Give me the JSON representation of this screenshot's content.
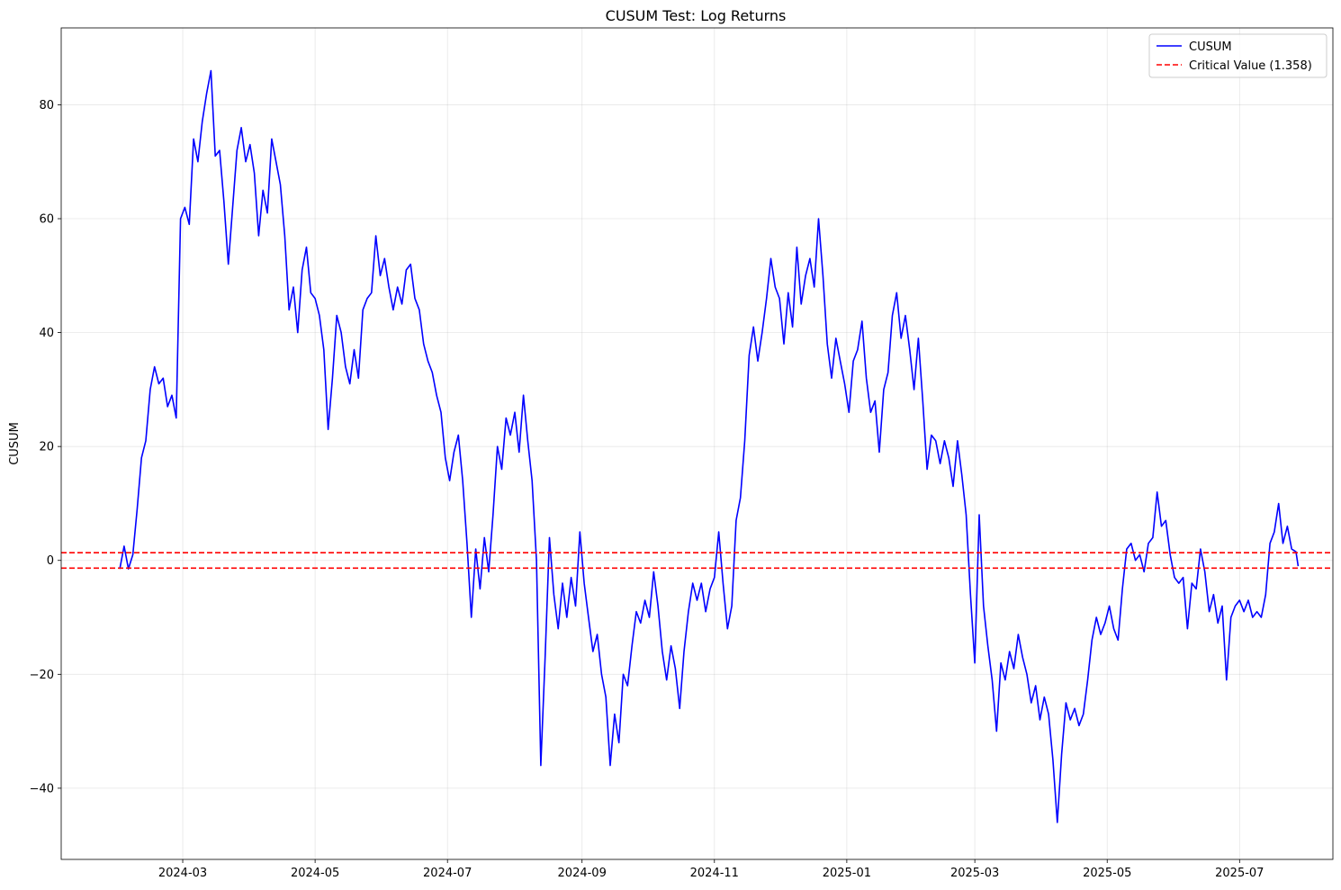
{
  "chart_data": {
    "type": "line",
    "title": "CUSUM Test: Log Returns",
    "xlabel": "",
    "ylabel": "CUSUM",
    "xlim": [
      "2024-01-05",
      "2025-08-13"
    ],
    "ylim": [
      -52.5,
      93.5
    ],
    "x_ticks": [
      "2024-03",
      "2024-05",
      "2024-07",
      "2024-09",
      "2024-11",
      "2025-01",
      "2025-03",
      "2025-05",
      "2025-07"
    ],
    "y_ticks": [
      -40,
      -20,
      0,
      20,
      40,
      60,
      80
    ],
    "grid": true,
    "legend_position": "top-right",
    "series": [
      {
        "name": "CUSUM",
        "color": "#0000ff",
        "style": "solid",
        "points": [
          [
            "2024-02-01",
            -1.5
          ],
          [
            "2024-02-03",
            2.5
          ],
          [
            "2024-02-05",
            -1.5
          ],
          [
            "2024-02-07",
            1.0
          ],
          [
            "2024-02-09",
            9.0
          ],
          [
            "2024-02-11",
            18.0
          ],
          [
            "2024-02-13",
            21.0
          ],
          [
            "2024-02-15",
            30.0
          ],
          [
            "2024-02-17",
            34.0
          ],
          [
            "2024-02-19",
            31.0
          ],
          [
            "2024-02-21",
            32.0
          ],
          [
            "2024-02-23",
            27.0
          ],
          [
            "2024-02-25",
            29.0
          ],
          [
            "2024-02-27",
            25.0
          ],
          [
            "2024-02-29",
            60.0
          ],
          [
            "2024-03-02",
            62.0
          ],
          [
            "2024-03-04",
            59.0
          ],
          [
            "2024-03-06",
            74.0
          ],
          [
            "2024-03-08",
            70.0
          ],
          [
            "2024-03-10",
            77.0
          ],
          [
            "2024-03-12",
            82.0
          ],
          [
            "2024-03-14",
            86.0
          ],
          [
            "2024-03-16",
            71.0
          ],
          [
            "2024-03-18",
            72.0
          ],
          [
            "2024-03-20",
            63.0
          ],
          [
            "2024-03-22",
            52.0
          ],
          [
            "2024-03-24",
            62.0
          ],
          [
            "2024-03-26",
            72.0
          ],
          [
            "2024-03-28",
            76.0
          ],
          [
            "2024-03-30",
            70.0
          ],
          [
            "2024-04-01",
            73.0
          ],
          [
            "2024-04-03",
            68.0
          ],
          [
            "2024-04-05",
            57.0
          ],
          [
            "2024-04-07",
            65.0
          ],
          [
            "2024-04-09",
            61.0
          ],
          [
            "2024-04-11",
            74.0
          ],
          [
            "2024-04-13",
            70.0
          ],
          [
            "2024-04-15",
            66.0
          ],
          [
            "2024-04-17",
            57.0
          ],
          [
            "2024-04-19",
            44.0
          ],
          [
            "2024-04-21",
            48.0
          ],
          [
            "2024-04-23",
            40.0
          ],
          [
            "2024-04-25",
            51.0
          ],
          [
            "2024-04-27",
            55.0
          ],
          [
            "2024-04-29",
            47.0
          ],
          [
            "2024-05-01",
            46.0
          ],
          [
            "2024-05-03",
            43.0
          ],
          [
            "2024-05-05",
            37.0
          ],
          [
            "2024-05-07",
            23.0
          ],
          [
            "2024-05-09",
            32.0
          ],
          [
            "2024-05-11",
            43.0
          ],
          [
            "2024-05-13",
            40.0
          ],
          [
            "2024-05-15",
            34.0
          ],
          [
            "2024-05-17",
            31.0
          ],
          [
            "2024-05-19",
            37.0
          ],
          [
            "2024-05-21",
            32.0
          ],
          [
            "2024-05-23",
            44.0
          ],
          [
            "2024-05-25",
            46.0
          ],
          [
            "2024-05-27",
            47.0
          ],
          [
            "2024-05-29",
            57.0
          ],
          [
            "2024-05-31",
            50.0
          ],
          [
            "2024-06-02",
            53.0
          ],
          [
            "2024-06-04",
            48.0
          ],
          [
            "2024-06-06",
            44.0
          ],
          [
            "2024-06-08",
            48.0
          ],
          [
            "2024-06-10",
            45.0
          ],
          [
            "2024-06-12",
            51.0
          ],
          [
            "2024-06-14",
            52.0
          ],
          [
            "2024-06-16",
            46.0
          ],
          [
            "2024-06-18",
            44.0
          ],
          [
            "2024-06-20",
            38.0
          ],
          [
            "2024-06-22",
            35.0
          ],
          [
            "2024-06-24",
            33.0
          ],
          [
            "2024-06-26",
            29.0
          ],
          [
            "2024-06-28",
            26.0
          ],
          [
            "2024-06-30",
            18.0
          ],
          [
            "2024-07-02",
            14.0
          ],
          [
            "2024-07-04",
            19.0
          ],
          [
            "2024-07-06",
            22.0
          ],
          [
            "2024-07-08",
            14.0
          ],
          [
            "2024-07-10",
            3.0
          ],
          [
            "2024-07-12",
            -10.0
          ],
          [
            "2024-07-14",
            2.0
          ],
          [
            "2024-07-16",
            -5.0
          ],
          [
            "2024-07-18",
            4.0
          ],
          [
            "2024-07-20",
            -2.0
          ],
          [
            "2024-07-22",
            8.0
          ],
          [
            "2024-07-24",
            20.0
          ],
          [
            "2024-07-26",
            16.0
          ],
          [
            "2024-07-28",
            25.0
          ],
          [
            "2024-07-30",
            22.0
          ],
          [
            "2024-08-01",
            26.0
          ],
          [
            "2024-08-03",
            19.0
          ],
          [
            "2024-08-05",
            29.0
          ],
          [
            "2024-08-07",
            21.0
          ],
          [
            "2024-08-09",
            14.0
          ],
          [
            "2024-08-11",
            0.0
          ],
          [
            "2024-08-13",
            -36.0
          ],
          [
            "2024-08-15",
            -17.0
          ],
          [
            "2024-08-17",
            4.0
          ],
          [
            "2024-08-19",
            -6.0
          ],
          [
            "2024-08-21",
            -12.0
          ],
          [
            "2024-08-23",
            -4.0
          ],
          [
            "2024-08-25",
            -10.0
          ],
          [
            "2024-08-27",
            -3.0
          ],
          [
            "2024-08-29",
            -8.0
          ],
          [
            "2024-08-31",
            5.0
          ],
          [
            "2024-09-02",
            -4.0
          ],
          [
            "2024-09-04",
            -10.0
          ],
          [
            "2024-09-06",
            -16.0
          ],
          [
            "2024-09-08",
            -13.0
          ],
          [
            "2024-09-10",
            -20.0
          ],
          [
            "2024-09-12",
            -24.0
          ],
          [
            "2024-09-14",
            -36.0
          ],
          [
            "2024-09-16",
            -27.0
          ],
          [
            "2024-09-18",
            -32.0
          ],
          [
            "2024-09-20",
            -20.0
          ],
          [
            "2024-09-22",
            -22.0
          ],
          [
            "2024-09-24",
            -15.0
          ],
          [
            "2024-09-26",
            -9.0
          ],
          [
            "2024-09-28",
            -11.0
          ],
          [
            "2024-09-30",
            -7.0
          ],
          [
            "2024-10-02",
            -10.0
          ],
          [
            "2024-10-04",
            -2.0
          ],
          [
            "2024-10-06",
            -8.0
          ],
          [
            "2024-10-08",
            -16.0
          ],
          [
            "2024-10-10",
            -21.0
          ],
          [
            "2024-10-12",
            -15.0
          ],
          [
            "2024-10-14",
            -19.0
          ],
          [
            "2024-10-16",
            -26.0
          ],
          [
            "2024-10-18",
            -16.0
          ],
          [
            "2024-10-20",
            -9.0
          ],
          [
            "2024-10-22",
            -4.0
          ],
          [
            "2024-10-24",
            -7.0
          ],
          [
            "2024-10-26",
            -4.0
          ],
          [
            "2024-10-28",
            -9.0
          ],
          [
            "2024-10-30",
            -5.0
          ],
          [
            "2024-11-01",
            -3.0
          ],
          [
            "2024-11-03",
            5.0
          ],
          [
            "2024-11-05",
            -4.0
          ],
          [
            "2024-11-07",
            -12.0
          ],
          [
            "2024-11-09",
            -8.0
          ],
          [
            "2024-11-11",
            7.0
          ],
          [
            "2024-11-13",
            11.0
          ],
          [
            "2024-11-15",
            21.0
          ],
          [
            "2024-11-17",
            36.0
          ],
          [
            "2024-11-19",
            41.0
          ],
          [
            "2024-11-21",
            35.0
          ],
          [
            "2024-11-23",
            40.0
          ],
          [
            "2024-11-25",
            46.0
          ],
          [
            "2024-11-27",
            53.0
          ],
          [
            "2024-11-29",
            48.0
          ],
          [
            "2024-12-01",
            46.0
          ],
          [
            "2024-12-03",
            38.0
          ],
          [
            "2024-12-05",
            47.0
          ],
          [
            "2024-12-07",
            41.0
          ],
          [
            "2024-12-09",
            55.0
          ],
          [
            "2024-12-11",
            45.0
          ],
          [
            "2024-12-13",
            50.0
          ],
          [
            "2024-12-15",
            53.0
          ],
          [
            "2024-12-17",
            48.0
          ],
          [
            "2024-12-19",
            60.0
          ],
          [
            "2024-12-21",
            50.0
          ],
          [
            "2024-12-23",
            38.0
          ],
          [
            "2024-12-25",
            32.0
          ],
          [
            "2024-12-27",
            39.0
          ],
          [
            "2024-12-29",
            35.0
          ],
          [
            "2024-12-31",
            31.0
          ],
          [
            "2025-01-02",
            26.0
          ],
          [
            "2025-01-04",
            35.0
          ],
          [
            "2025-01-06",
            37.0
          ],
          [
            "2025-01-08",
            42.0
          ],
          [
            "2025-01-10",
            32.0
          ],
          [
            "2025-01-12",
            26.0
          ],
          [
            "2025-01-14",
            28.0
          ],
          [
            "2025-01-16",
            19.0
          ],
          [
            "2025-01-18",
            30.0
          ],
          [
            "2025-01-20",
            33.0
          ],
          [
            "2025-01-22",
            43.0
          ],
          [
            "2025-01-24",
            47.0
          ],
          [
            "2025-01-26",
            39.0
          ],
          [
            "2025-01-28",
            43.0
          ],
          [
            "2025-01-30",
            37.0
          ],
          [
            "2025-02-01",
            30.0
          ],
          [
            "2025-02-03",
            39.0
          ],
          [
            "2025-02-05",
            28.0
          ],
          [
            "2025-02-07",
            16.0
          ],
          [
            "2025-02-09",
            22.0
          ],
          [
            "2025-02-11",
            21.0
          ],
          [
            "2025-02-13",
            17.0
          ],
          [
            "2025-02-15",
            21.0
          ],
          [
            "2025-02-17",
            18.0
          ],
          [
            "2025-02-19",
            13.0
          ],
          [
            "2025-02-21",
            21.0
          ],
          [
            "2025-02-23",
            15.0
          ],
          [
            "2025-02-25",
            8.0
          ],
          [
            "2025-02-27",
            -6.0
          ],
          [
            "2025-03-01",
            -18.0
          ],
          [
            "2025-03-03",
            8.0
          ],
          [
            "2025-03-05",
            -8.0
          ],
          [
            "2025-03-07",
            -15.0
          ],
          [
            "2025-03-09",
            -21.0
          ],
          [
            "2025-03-11",
            -30.0
          ],
          [
            "2025-03-13",
            -18.0
          ],
          [
            "2025-03-15",
            -21.0
          ],
          [
            "2025-03-17",
            -16.0
          ],
          [
            "2025-03-19",
            -19.0
          ],
          [
            "2025-03-21",
            -13.0
          ],
          [
            "2025-03-23",
            -17.0
          ],
          [
            "2025-03-25",
            -20.0
          ],
          [
            "2025-03-27",
            -25.0
          ],
          [
            "2025-03-29",
            -22.0
          ],
          [
            "2025-03-31",
            -28.0
          ],
          [
            "2025-04-02",
            -24.0
          ],
          [
            "2025-04-04",
            -27.0
          ],
          [
            "2025-04-06",
            -35.0
          ],
          [
            "2025-04-08",
            -46.0
          ],
          [
            "2025-04-10",
            -34.0
          ],
          [
            "2025-04-12",
            -25.0
          ],
          [
            "2025-04-14",
            -28.0
          ],
          [
            "2025-04-16",
            -26.0
          ],
          [
            "2025-04-18",
            -29.0
          ],
          [
            "2025-04-20",
            -27.0
          ],
          [
            "2025-04-22",
            -21.0
          ],
          [
            "2025-04-24",
            -14.0
          ],
          [
            "2025-04-26",
            -10.0
          ],
          [
            "2025-04-28",
            -13.0
          ],
          [
            "2025-04-30",
            -11.0
          ],
          [
            "2025-05-02",
            -8.0
          ],
          [
            "2025-05-04",
            -12.0
          ],
          [
            "2025-05-06",
            -14.0
          ],
          [
            "2025-05-08",
            -5.0
          ],
          [
            "2025-05-10",
            2.0
          ],
          [
            "2025-05-12",
            3.0
          ],
          [
            "2025-05-14",
            0.0
          ],
          [
            "2025-05-16",
            1.0
          ],
          [
            "2025-05-18",
            -2.0
          ],
          [
            "2025-05-20",
            3.0
          ],
          [
            "2025-05-22",
            4.0
          ],
          [
            "2025-05-24",
            12.0
          ],
          [
            "2025-05-26",
            6.0
          ],
          [
            "2025-05-28",
            7.0
          ],
          [
            "2025-05-30",
            1.0
          ],
          [
            "2025-06-01",
            -3.0
          ],
          [
            "2025-06-03",
            -4.0
          ],
          [
            "2025-06-05",
            -3.0
          ],
          [
            "2025-06-07",
            -12.0
          ],
          [
            "2025-06-09",
            -4.0
          ],
          [
            "2025-06-11",
            -5.0
          ],
          [
            "2025-06-13",
            2.0
          ],
          [
            "2025-06-15",
            -2.0
          ],
          [
            "2025-06-17",
            -9.0
          ],
          [
            "2025-06-19",
            -6.0
          ],
          [
            "2025-06-21",
            -11.0
          ],
          [
            "2025-06-23",
            -8.0
          ],
          [
            "2025-06-25",
            -21.0
          ],
          [
            "2025-06-27",
            -10.0
          ],
          [
            "2025-06-29",
            -8.0
          ],
          [
            "2025-07-01",
            -7.0
          ],
          [
            "2025-07-03",
            -9.0
          ],
          [
            "2025-07-05",
            -7.0
          ],
          [
            "2025-07-07",
            -10.0
          ],
          [
            "2025-07-09",
            -9.0
          ],
          [
            "2025-07-11",
            -10.0
          ],
          [
            "2025-07-13",
            -6.0
          ],
          [
            "2025-07-15",
            3.0
          ],
          [
            "2025-07-17",
            5.0
          ],
          [
            "2025-07-19",
            10.0
          ],
          [
            "2025-07-21",
            3.0
          ],
          [
            "2025-07-23",
            6.0
          ],
          [
            "2025-07-25",
            2.0
          ],
          [
            "2025-07-27",
            1.5
          ],
          [
            "2025-07-28",
            -1.0
          ]
        ]
      },
      {
        "name": "Critical Value (1.358)",
        "color": "#ff0000",
        "style": "dashed",
        "hlines": [
          1.358,
          -1.358
        ]
      }
    ]
  }
}
